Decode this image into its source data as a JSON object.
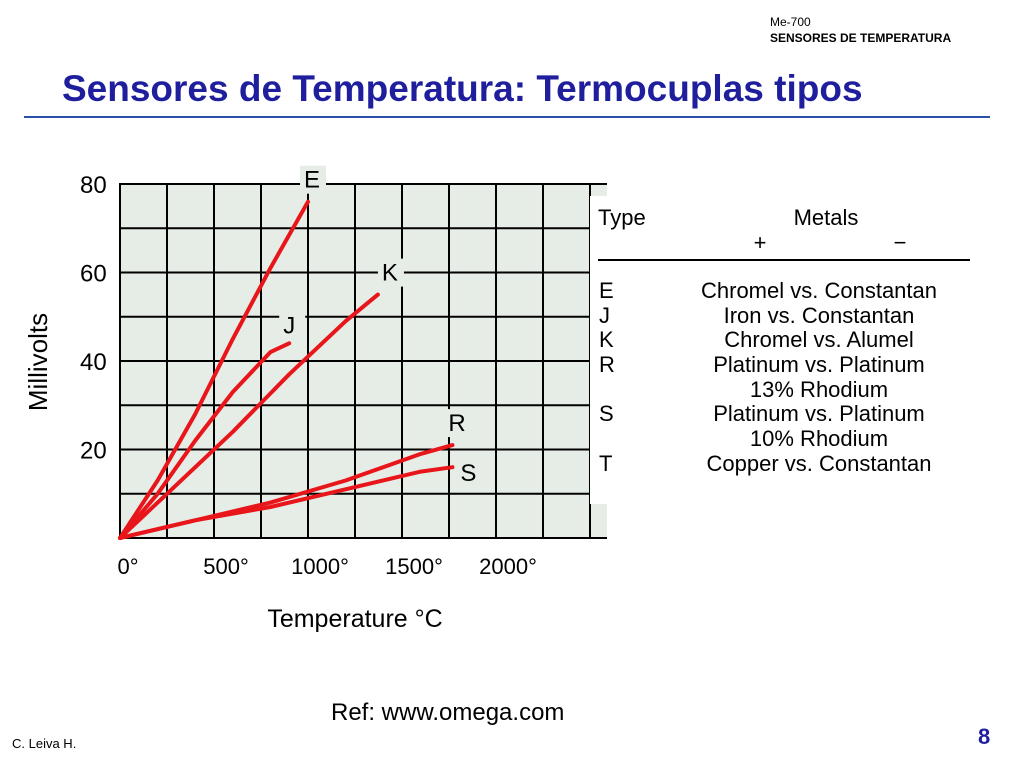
{
  "header": {
    "course": "Me-700",
    "subject": "SENSORES DE TEMPERATURA"
  },
  "slide": {
    "title": "Sensores de Temperatura: Termocuplas tipos",
    "reference": "Ref: www.omega.com",
    "author": "C. Leiva H.",
    "page_number": "8"
  },
  "colors": {
    "title": "#1f1f9e",
    "rule": "#2a4fa6",
    "curve": "#e8161b",
    "grid_bg": "#e6ece6",
    "grid_line": "#000000"
  },
  "chart_data": {
    "type": "line",
    "xlabel": "Temperature °C",
    "ylabel": "Millivolts",
    "x_ticks": [
      "0°",
      "500°",
      "1000°",
      "1500°",
      "2000°"
    ],
    "y_ticks": [
      "20",
      "40",
      "60",
      "80"
    ],
    "xlim": [
      0,
      2500
    ],
    "ylim": [
      0,
      80
    ],
    "grid": true,
    "series": [
      {
        "name": "E",
        "x": [
          0,
          200,
          400,
          600,
          800,
          1000
        ],
        "y": [
          0,
          13,
          28,
          45,
          61,
          76
        ]
      },
      {
        "name": "J",
        "x": [
          0,
          200,
          400,
          600,
          800,
          900
        ],
        "y": [
          0,
          10,
          22,
          33,
          42,
          44
        ]
      },
      {
        "name": "K",
        "x": [
          0,
          300,
          600,
          900,
          1200,
          1372
        ],
        "y": [
          0,
          12,
          24,
          37,
          49,
          55
        ]
      },
      {
        "name": "R",
        "x": [
          0,
          400,
          800,
          1200,
          1600,
          1768
        ],
        "y": [
          0,
          4,
          8,
          13,
          19,
          21
        ]
      },
      {
        "name": "S",
        "x": [
          0,
          400,
          800,
          1200,
          1600,
          1768
        ],
        "y": [
          0,
          4,
          7,
          11,
          15,
          16
        ]
      }
    ]
  },
  "table": {
    "header_type": "Type",
    "header_metals": "Metals",
    "header_plus": "+",
    "header_minus": "−",
    "types": [
      "E",
      "J",
      "K",
      "R",
      "S",
      "T"
    ],
    "metal_lines": [
      "Chromel vs. Constantan",
      "Iron vs. Constantan",
      "Chromel vs. Alumel",
      "Platinum vs. Platinum",
      "13% Rhodium",
      "Platinum vs. Platinum",
      "10% Rhodium",
      "Copper vs. Constantan"
    ]
  }
}
